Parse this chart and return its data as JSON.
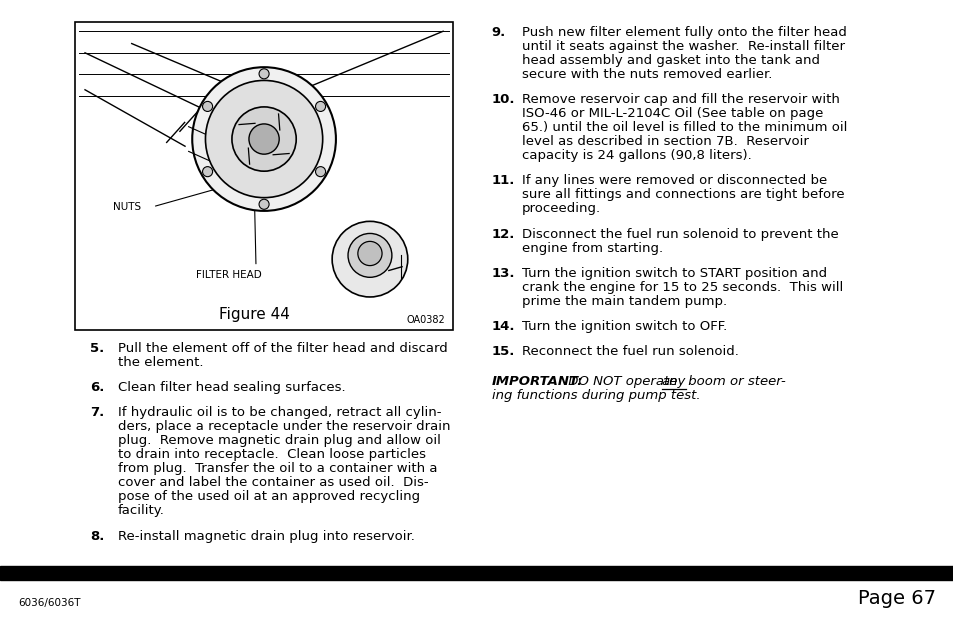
{
  "background_color": "#ffffff",
  "page_width": 9.54,
  "page_height": 6.18,
  "dpi": 100,
  "footer_bar_color": "#000000",
  "footer_left_text": "6036/6036T",
  "footer_right_text": "Page 67",
  "footer_fontsize": 7.5,
  "footer_page_fontsize": 14,
  "left_items": [
    {
      "num": "5.",
      "text": "Pull the element off of the filter head and discard\nthe element."
    },
    {
      "num": "6.",
      "text": "Clean filter head sealing surfaces."
    },
    {
      "num": "7.",
      "text": "If hydraulic oil is to be changed, retract all cylin-\nders, place a receptacle under the reservoir drain\nplug.  Remove magnetic drain plug and allow oil\nto drain into receptacle.  Clean loose particles\nfrom plug.  Transfer the oil to a container with a\ncover and label the container as used oil.  Dis-\npose of the used oil at an approved recycling\nfacility."
    },
    {
      "num": "8.",
      "text": "Re-install magnetic drain plug into reservoir."
    }
  ],
  "right_items": [
    {
      "num": "9.",
      "text": "Push new filter element fully onto the filter head\nuntil it seats against the washer.  Re-install filter\nhead assembly and gasket into the tank and\nsecure with the nuts removed earlier."
    },
    {
      "num": "10.",
      "text": "Remove reservoir cap and fill the reservoir with\nISO-46 or MIL-L-2104C Oil (See table on page\n65.) until the oil level is filled to the minimum oil\nlevel as described in section 7B.  Reservoir\ncapacity is 24 gallons (90,8 liters)."
    },
    {
      "num": "11.",
      "text": "If any lines were removed or disconnected be\nsure all fittings and connections are tight before\nproceeding."
    },
    {
      "num": "12.",
      "text": "Disconnect the fuel run solenoid to prevent the\nengine from starting."
    },
    {
      "num": "13.",
      "text": "Turn the ignition switch to START position and\ncrank the engine for 15 to 25 seconds.  This will\nprime the main tandem pump."
    },
    {
      "num": "14.",
      "text": "Turn the ignition switch to OFF."
    },
    {
      "num": "15.",
      "text": "Reconnect the fuel run solenoid."
    }
  ],
  "figure_label": "Figure 44",
  "figure_code": "OA0382",
  "figure_nuts_label": "NUTS",
  "figure_filterhead_label": "FILTER HEAD",
  "body_fontsize": 9.5,
  "num_fontsize": 9.5
}
